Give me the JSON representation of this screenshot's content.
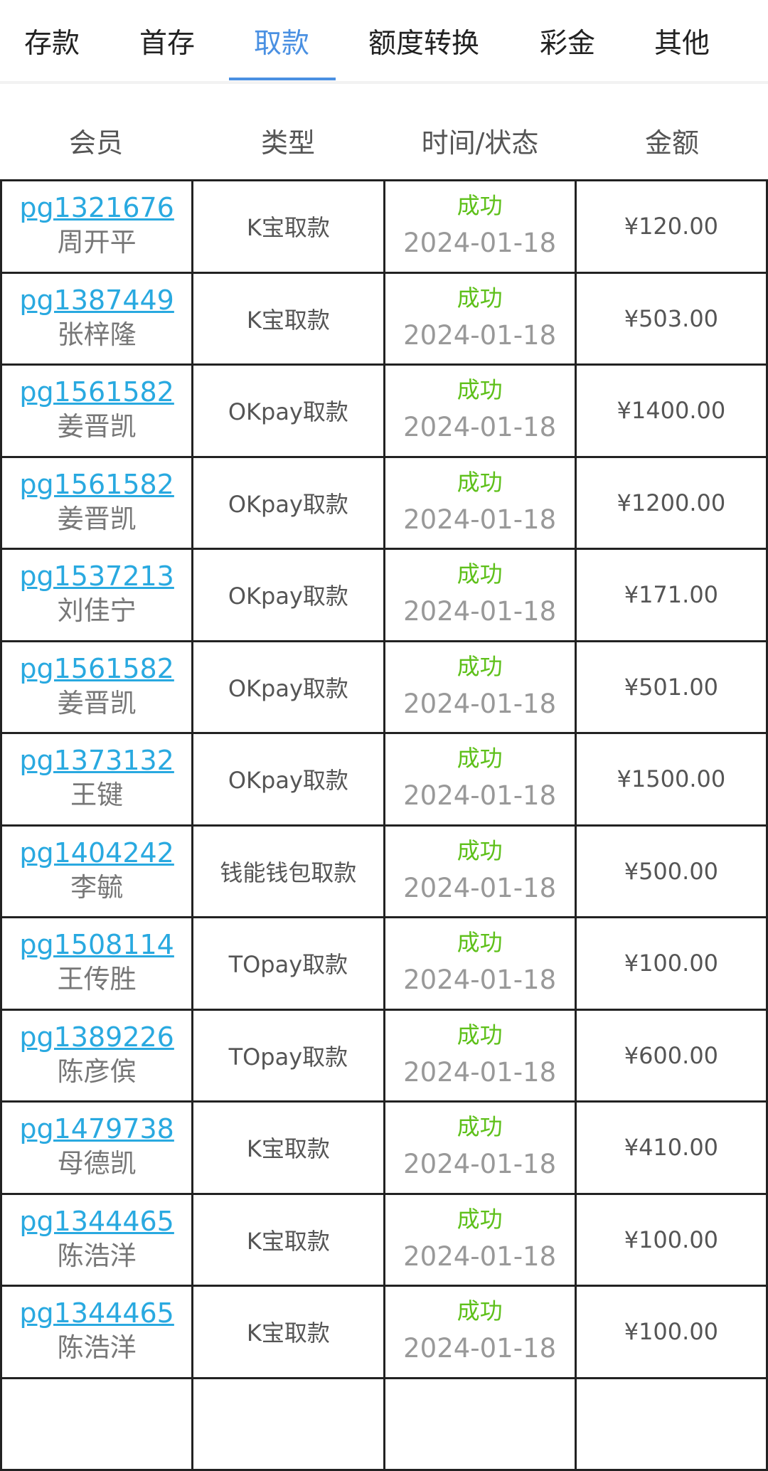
{
  "tabs": [
    {
      "label": "存款"
    },
    {
      "label": "首存"
    },
    {
      "label": "取款",
      "active": true
    },
    {
      "label": "额度转换"
    },
    {
      "label": "彩金"
    },
    {
      "label": "其他"
    }
  ],
  "accent": "#4a90e2",
  "headers": [
    "会员",
    "类型",
    "时间/状态",
    "金额"
  ],
  "rows": [
    {
      "user": "pg1321676",
      "name": "周开平",
      "type": "K宝取款",
      "status": "成功",
      "date": "2024-01-18",
      "amount": "¥120.00"
    },
    {
      "user": "pg1387449",
      "name": "张梓隆",
      "type": "K宝取款",
      "status": "成功",
      "date": "2024-01-18",
      "amount": "¥503.00"
    },
    {
      "user": "pg1561582",
      "name": "姜晋凯",
      "type": "OKpay取款",
      "status": "成功",
      "date": "2024-01-18",
      "amount": "¥1400.00"
    },
    {
      "user": "pg1561582",
      "name": "姜晋凯",
      "type": "OKpay取款",
      "status": "成功",
      "date": "2024-01-18",
      "amount": "¥1200.00"
    },
    {
      "user": "pg1537213",
      "name": "刘佳宁",
      "type": "OKpay取款",
      "status": "成功",
      "date": "2024-01-18",
      "amount": "¥171.00"
    },
    {
      "user": "pg1561582",
      "name": "姜晋凯",
      "type": "OKpay取款",
      "status": "成功",
      "date": "2024-01-18",
      "amount": "¥501.00"
    },
    {
      "user": "pg1373132",
      "name": "王键",
      "type": "OKpay取款",
      "status": "成功",
      "date": "2024-01-18",
      "amount": "¥1500.00"
    },
    {
      "user": "pg1404242",
      "name": "李毓",
      "type": "钱能钱包取款",
      "status": "成功",
      "date": "2024-01-18",
      "amount": "¥500.00"
    },
    {
      "user": "pg1508114",
      "name": "王传胜",
      "type": "TOpay取款",
      "status": "成功",
      "date": "2024-01-18",
      "amount": "¥100.00"
    },
    {
      "user": "pg1389226",
      "name": "陈彦傧",
      "type": "TOpay取款",
      "status": "成功",
      "date": "2024-01-18",
      "amount": "¥600.00"
    },
    {
      "user": "pg1479738",
      "name": "母德凯",
      "type": "K宝取款",
      "status": "成功",
      "date": "2024-01-18",
      "amount": "¥410.00"
    },
    {
      "user": "pg1344465",
      "name": "陈浩洋",
      "type": "K宝取款",
      "status": "成功",
      "date": "2024-01-18",
      "amount": "¥100.00"
    },
    {
      "user": "pg1344465",
      "name": "陈浩洋",
      "type": "K宝取款",
      "status": "成功",
      "date": "2024-01-18",
      "amount": "¥100.00"
    }
  ]
}
